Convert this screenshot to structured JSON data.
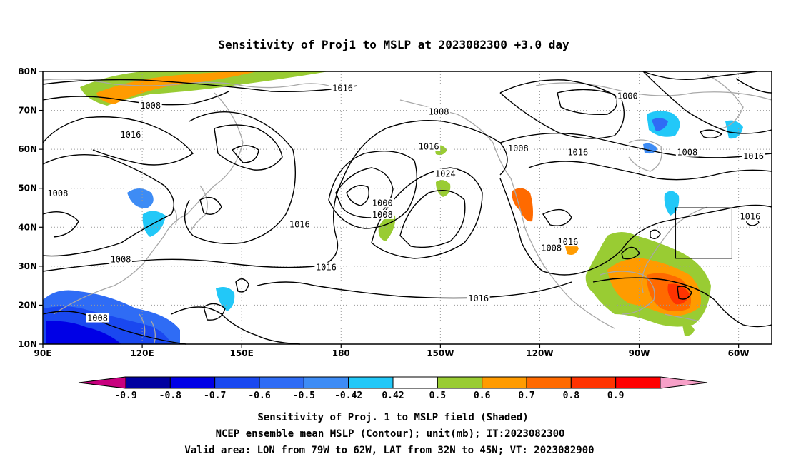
{
  "title": "Sensitivity of Proj1 to MSLP at 2023082300 +3.0 day",
  "map": {
    "lon_range": [
      90,
      310
    ],
    "lat_range": [
      10,
      80
    ],
    "lat_ticks": [
      {
        "value": 80,
        "label": "80N"
      },
      {
        "value": 70,
        "label": "70N"
      },
      {
        "value": 60,
        "label": "60N"
      },
      {
        "value": 50,
        "label": "50N"
      },
      {
        "value": 40,
        "label": "40N"
      },
      {
        "value": 30,
        "label": "30N"
      },
      {
        "value": 20,
        "label": "20N"
      },
      {
        "value": 10,
        "label": "10N"
      }
    ],
    "lon_ticks": [
      {
        "value": 90,
        "label": "90E"
      },
      {
        "value": 120,
        "label": "120E"
      },
      {
        "value": 150,
        "label": "150E"
      },
      {
        "value": 180,
        "label": "180"
      },
      {
        "value": 210,
        "label": "150W"
      },
      {
        "value": 240,
        "label": "120W"
      },
      {
        "value": 270,
        "label": "90W"
      },
      {
        "value": 300,
        "label": "60W"
      }
    ],
    "valid_box": {
      "lon_min": 281,
      "lon_max": 298,
      "lat_min": 32,
      "lat_max": 45
    },
    "contour_labels": [
      {
        "text": "1016",
        "lon": 180.5,
        "lat": 75.5
      },
      {
        "text": "1008",
        "lon": 122.5,
        "lat": 71.0
      },
      {
        "text": "1016",
        "lon": 116.5,
        "lat": 63.5
      },
      {
        "text": "1008",
        "lon": 209.5,
        "lat": 69.5
      },
      {
        "text": "1000",
        "lon": 266.5,
        "lat": 73.5
      },
      {
        "text": "1016",
        "lon": 206.5,
        "lat": 60.5
      },
      {
        "text": "1008",
        "lon": 233.5,
        "lat": 60.0
      },
      {
        "text": "1016",
        "lon": 251.5,
        "lat": 59.0
      },
      {
        "text": "1008",
        "lon": 284.5,
        "lat": 59.0
      },
      {
        "text": "1016",
        "lon": 304.5,
        "lat": 58.0
      },
      {
        "text": "1024",
        "lon": 211.5,
        "lat": 53.5
      },
      {
        "text": "1008",
        "lon": 94.5,
        "lat": 48.5
      },
      {
        "text": "1000",
        "lon": 192.5,
        "lat": 46.0
      },
      {
        "text": "1008",
        "lon": 192.5,
        "lat": 43.0
      },
      {
        "text": "1016",
        "lon": 167.5,
        "lat": 40.5
      },
      {
        "text": "1016",
        "lon": 248.5,
        "lat": 36.0
      },
      {
        "text": "1008",
        "lon": 243.5,
        "lat": 34.5
      },
      {
        "text": "1016",
        "lon": 303.5,
        "lat": 42.5
      },
      {
        "text": "1008",
        "lon": 113.5,
        "lat": 31.5
      },
      {
        "text": "1016",
        "lon": 175.5,
        "lat": 29.5
      },
      {
        "text": "1016",
        "lon": 221.5,
        "lat": 21.5
      },
      {
        "text": "1008",
        "lon": 106.5,
        "lat": 16.5
      }
    ]
  },
  "colorbar": {
    "colors": [
      "#c8007e",
      "#0000a0",
      "#0000e6",
      "#1a48f0",
      "#2f6cf5",
      "#3e8cf5",
      "#22c8f8",
      "#ffffff",
      "#99cc33",
      "#ff9b00",
      "#ff6a00",
      "#ff3300",
      "#ff0000",
      "#f7a0c8"
    ],
    "labels": [
      "-0.9",
      "-0.8",
      "-0.7",
      "-0.6",
      "-0.5",
      "-0.42",
      "0.42",
      "0.5",
      "0.6",
      "0.7",
      "0.8",
      "0.9"
    ]
  },
  "captions": [
    "Sensitivity of Proj. 1 to MSLP field (Shaded)",
    "NCEP ensemble mean MSLP (Contour); unit(mb); IT:2023082300",
    "Valid area: LON from 79W to 62W, LAT from 32N to 45N; VT: 2023082900"
  ]
}
